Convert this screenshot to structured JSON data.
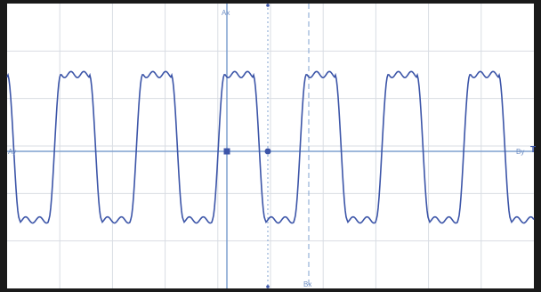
{
  "scope": {
    "labels": {
      "ax": "Ax",
      "bx": "Bx",
      "left_axis": "Ay",
      "right_axis": "By",
      "trigger": "T"
    },
    "colors": {
      "background": "#ffffff",
      "frame": "#1a1a1a",
      "grid": "#d9dde3",
      "axis": "#7fa0cf",
      "cursor": "#7fa0cf",
      "trace": "#3c55a8",
      "marker": "#3c55a8"
    },
    "grid": {
      "divisions_x": 10,
      "divisions_y": 6,
      "visible": true
    },
    "trace": {
      "shape": "square-wave",
      "cycles_visible": 6.3,
      "high_level": 0.75,
      "low_level": -0.67,
      "cursor_a_marker_phase": 0.5,
      "cursor_b_marker_phase": 1.0
    }
  },
  "chart_data": {
    "type": "line",
    "title": "",
    "xlabel": "",
    "ylabel": "",
    "ylim": [
      -1,
      1
    ],
    "series": [
      {
        "x": [
          0,
          0.05,
          0.1,
          0.15,
          0.2,
          0.25,
          0.3,
          0.35,
          0.4,
          0.45,
          0.5,
          0.55,
          0.6,
          0.65,
          0.7,
          0.75,
          0.8,
          0.85,
          0.9,
          0.95,
          1.0
        ],
        "values": [
          -0.67,
          -0.67,
          0.0,
          0.75,
          0.75,
          0.75,
          0.72,
          0.75,
          0.7,
          0.0,
          -0.67,
          -0.67,
          -0.67,
          0.0,
          0.75,
          0.75,
          0.72,
          0.75,
          0.72,
          0.0,
          -0.67
        ]
      }
    ]
  }
}
